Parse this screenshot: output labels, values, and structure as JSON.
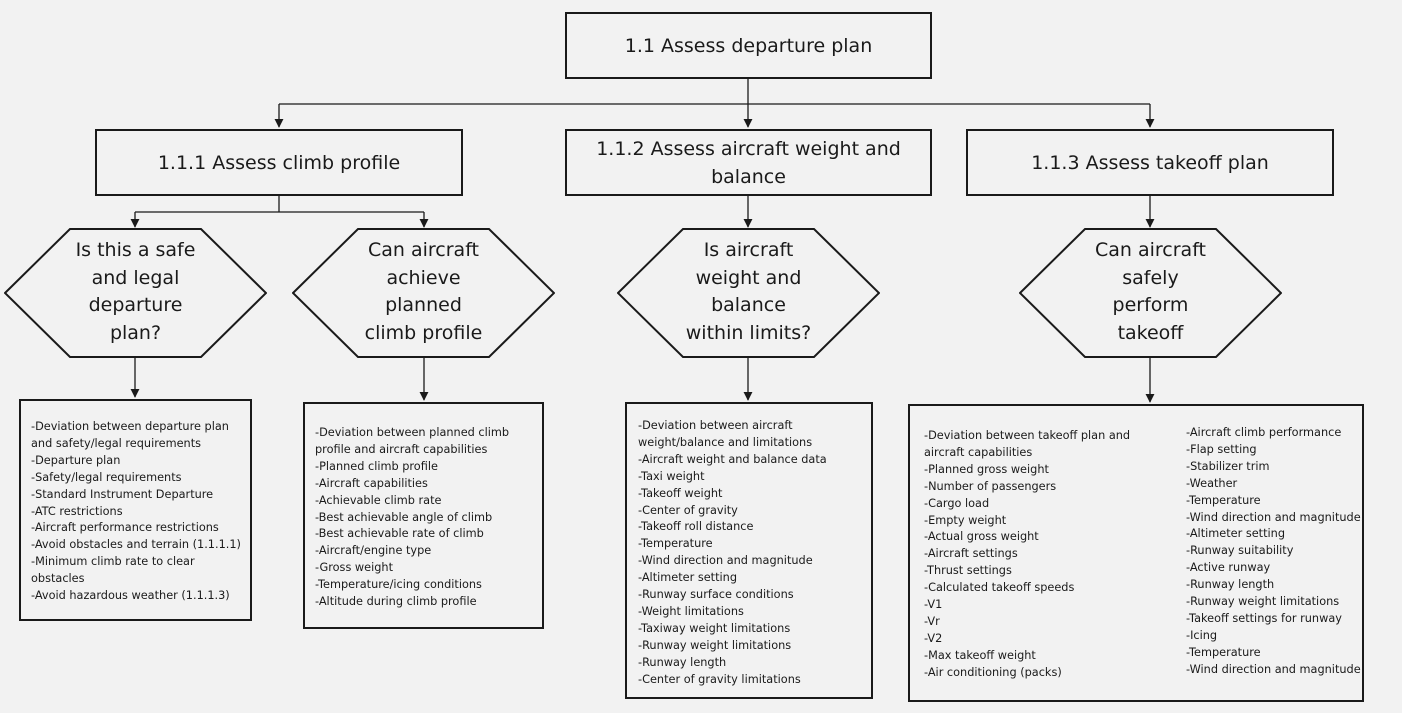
{
  "diagram": {
    "root": {
      "title": "1.1 Assess departure plan"
    },
    "branches": [
      {
        "title": "1.1.1 Assess climb profile",
        "decisions": [
          {
            "question_lines": [
              "Is this a safe",
              "and legal",
              "departure",
              "plan?"
            ],
            "items": [
              "-Deviation between departure plan and safety/legal requirements",
              "-Departure plan",
              "-Safety/legal requirements",
              "-Standard Instrument Departure",
              "-ATC restrictions",
              "-Aircraft performance restrictions",
              "-Avoid obstacles and terrain (1.1.1.1)",
              "-Minimum climb rate to clear obstacles",
              "-Avoid hazardous weather (1.1.1.3)"
            ]
          },
          {
            "question_lines": [
              "Can aircraft",
              "achieve",
              "planned",
              "climb profile"
            ],
            "items": [
              "-Deviation between planned climb profile and aircraft capabilities",
              "-Planned climb profile",
              "-Aircraft capabilities",
              "-Achievable climb rate",
              "-Best achievable angle of climb",
              "-Best achievable rate of climb",
              "-Aircraft/engine type",
              "-Gross weight",
              "-Temperature/icing conditions",
              "-Altitude during climb profile"
            ]
          }
        ]
      },
      {
        "title": "1.1.2 Assess aircraft weight and balance",
        "decisions": [
          {
            "question_lines": [
              "Is aircraft",
              "weight and",
              "balance",
              "within limits?"
            ],
            "items": [
              "-Deviation between aircraft weight/balance and limitations",
              "-Aircraft weight and balance data",
              "-Taxi weight",
              "-Takeoff weight",
              "-Center of gravity",
              "-Takeoff roll distance",
              "-Temperature",
              "-Wind direction and magnitude",
              "-Altimeter setting",
              "-Runway surface conditions",
              "-Weight limitations",
              "-Taxiway weight limitations",
              "-Runway weight limitations",
              "-Runway length",
              "-Center of gravity limitations"
            ]
          }
        ]
      },
      {
        "title": "1.1.3 Assess takeoff plan",
        "decisions": [
          {
            "question_lines": [
              "Can aircraft",
              "safely",
              "perform",
              "takeoff"
            ],
            "items_col1": [
              "-Deviation between takeoff plan and aircraft capabilities",
              "-Planned gross weight",
              "-Number of passengers",
              "-Cargo load",
              "-Empty weight",
              "-Actual gross weight",
              "-Aircraft settings",
              "-Thrust settings",
              "-Calculated takeoff speeds",
              "-V1",
              "-Vr",
              "-V2",
              "-Max takeoff weight",
              "-Air conditioning (packs)"
            ],
            "items_col2": [
              "-Aircraft climb performance",
              "-Flap setting",
              "-Stabilizer trim",
              "-Weather",
              "-Temperature",
              "-Wind direction and magnitude",
              "-Altimeter setting",
              "-Runway suitability",
              "-Active runway",
              "-Runway length",
              "-Runway weight limitations",
              "-Takeoff settings for runway",
              "-Icing",
              "-Temperature",
              "-Wind direction and magnitude"
            ]
          }
        ]
      }
    ]
  }
}
